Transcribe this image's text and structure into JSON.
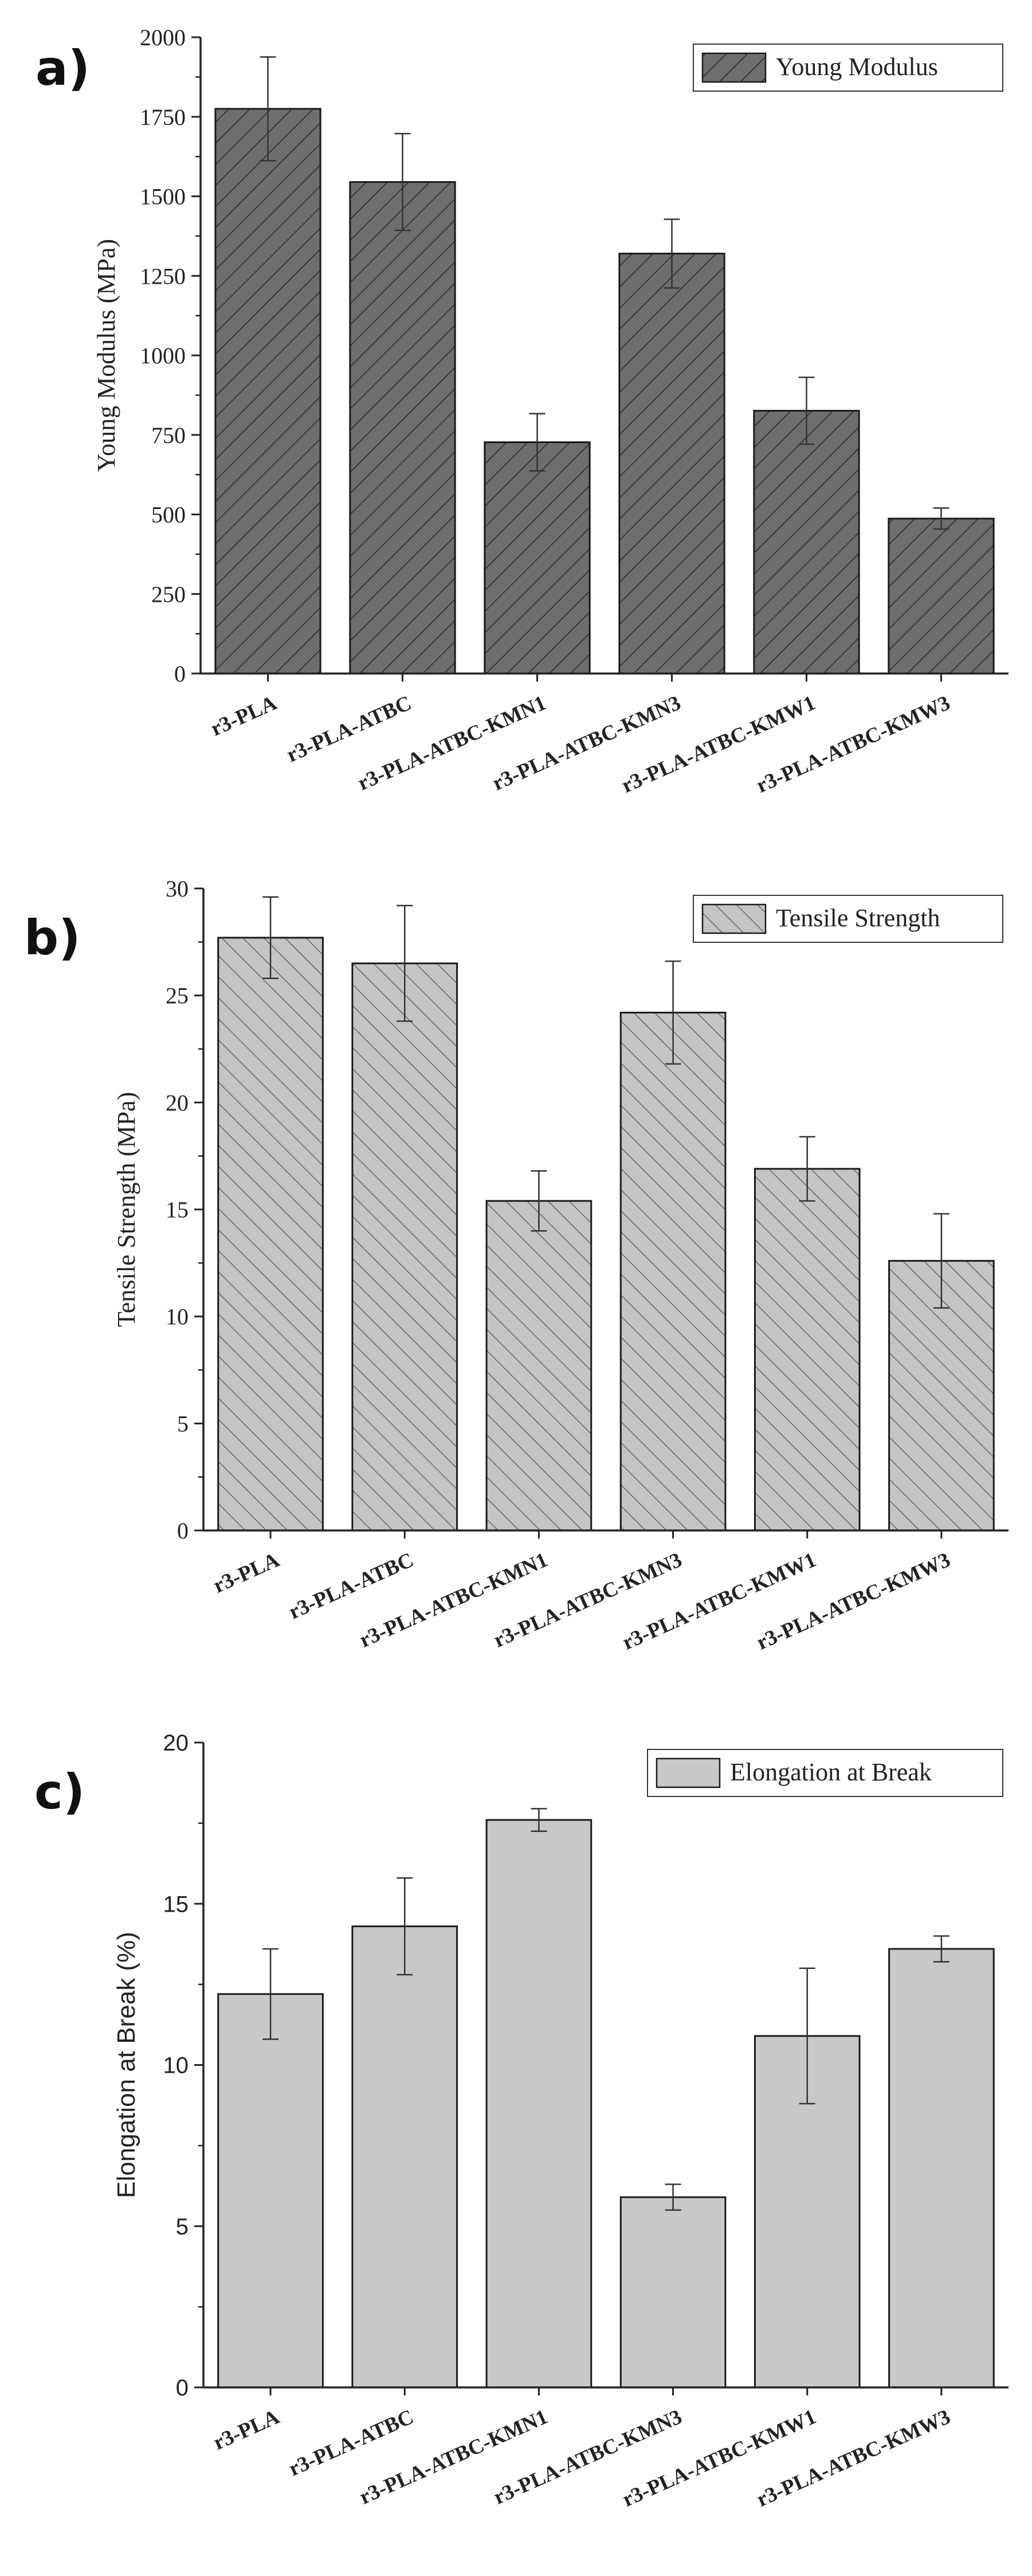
{
  "figure": {
    "panel_labels": [
      "a)",
      "b)",
      "c)"
    ]
  },
  "chart_data": [
    {
      "type": "bar",
      "panel": "a)",
      "title": "",
      "xlabel": "",
      "ylabel": "Young Modulus (MPa)",
      "legend": "Young Modulus",
      "legend_position": "top-right",
      "fill_color": "#6e6e6e",
      "pattern": "dense-diagonal-hatch",
      "categories": [
        "r3-PLA",
        "r3-PLA-ATBC",
        "r3-PLA-ATBC-KMN1",
        "r3-PLA-ATBC-KMN3",
        "r3-PLA-ATBC-KMW1",
        "r3-PLA-ATBC-KMW3"
      ],
      "values": [
        1775,
        1545,
        727,
        1320,
        826,
        487
      ],
      "errors": [
        163,
        152,
        90,
        108,
        105,
        33
      ],
      "ylim": [
        0,
        2000
      ],
      "yticks": [
        0,
        250,
        500,
        750,
        1000,
        1250,
        1500,
        1750,
        2000
      ],
      "grid": false
    },
    {
      "type": "bar",
      "panel": "b)",
      "title": "",
      "xlabel": "",
      "ylabel": "Tensile Strength (MPa)",
      "legend": "Tensile Strength",
      "legend_position": "top-right",
      "fill_color": "#c4c4c4",
      "pattern": "back-diagonal-hatch",
      "categories": [
        "r3-PLA",
        "r3-PLA-ATBC",
        "r3-PLA-ATBC-KMN1",
        "r3-PLA-ATBC-KMN3",
        "r3-PLA-ATBC-KMW1",
        "r3-PLA-ATBC-KMW3"
      ],
      "values": [
        27.7,
        26.5,
        15.4,
        24.2,
        16.9,
        12.6
      ],
      "errors": [
        1.9,
        2.7,
        1.4,
        2.4,
        1.5,
        2.2
      ],
      "ylim": [
        0,
        30
      ],
      "yticks": [
        0,
        5,
        10,
        15,
        20,
        25,
        30
      ],
      "grid": false
    },
    {
      "type": "bar",
      "panel": "c)",
      "title": "",
      "xlabel": "",
      "ylabel": "Elongation at Break (%)",
      "legend": "Elongation at Break",
      "legend_position": "top-right",
      "fill_color": "#c8c8c8",
      "pattern": "solid",
      "categories": [
        "r3-PLA",
        "r3-PLA-ATBC",
        "r3-PLA-ATBC-KMN1",
        "r3-PLA-ATBC-KMN3",
        "r3-PLA-ATBC-KMW1",
        "r3-PLA-ATBC-KMW3"
      ],
      "values": [
        12.2,
        14.3,
        17.6,
        5.9,
        10.9,
        13.6
      ],
      "errors": [
        1.4,
        1.5,
        0.35,
        0.4,
        2.1,
        0.4
      ],
      "ylim": [
        0,
        20
      ],
      "yticks": [
        0,
        5,
        10,
        15,
        20
      ],
      "grid": false
    }
  ]
}
